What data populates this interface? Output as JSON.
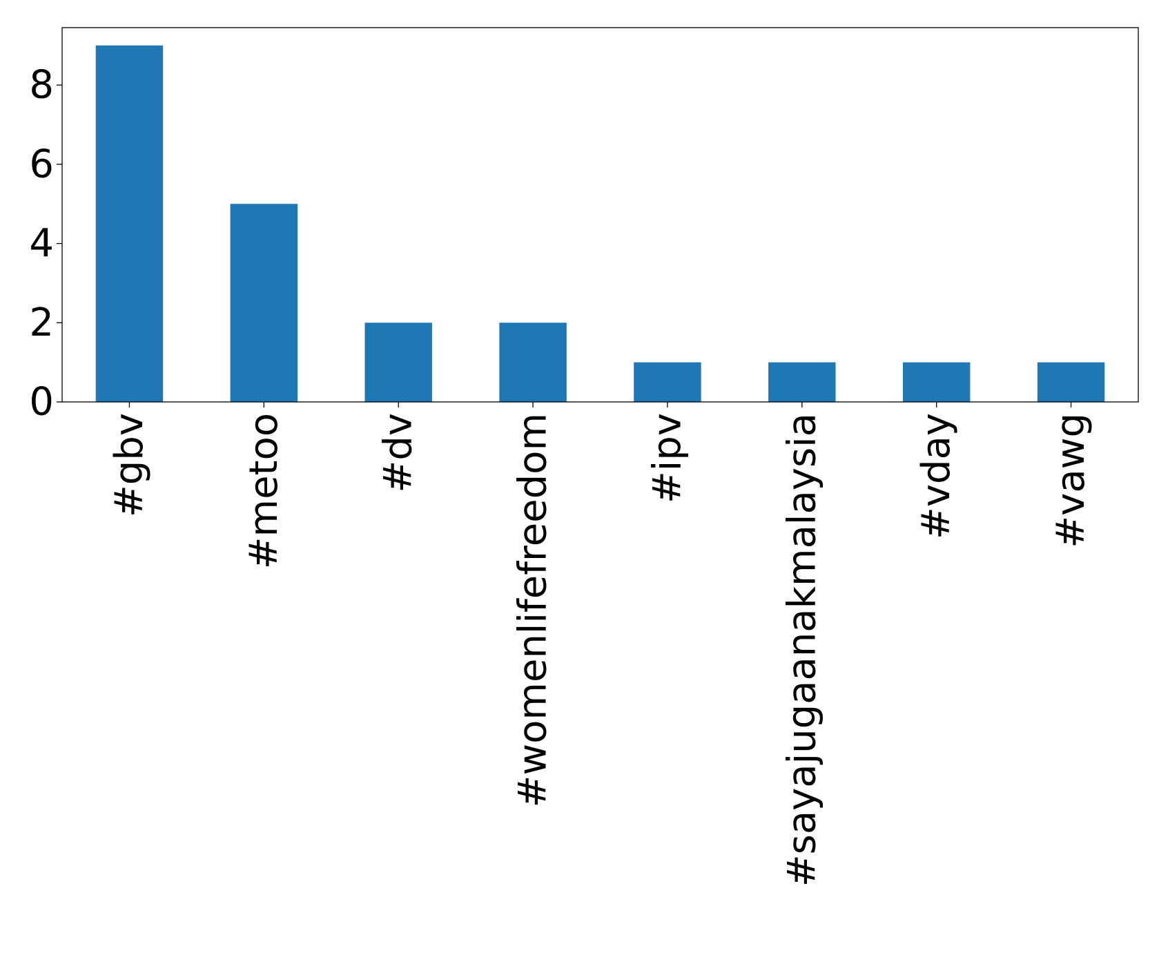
{
  "chart_data": {
    "type": "bar",
    "categories": [
      "#gbv",
      "#metoo",
      "#dv",
      "#womenlifefreedom",
      "#ipv",
      "#sayajugaanakmalaysia",
      "#vday",
      "#vawg"
    ],
    "values": [
      9,
      5,
      2,
      2,
      1,
      1,
      1,
      1
    ],
    "title": "",
    "xlabel": "",
    "ylabel": "",
    "ylim": [
      0,
      9.45
    ],
    "yticks": [
      "0",
      "2",
      "4",
      "6",
      "8"
    ],
    "grid": false,
    "legend": "none",
    "bar_color": "#1f77b4"
  }
}
